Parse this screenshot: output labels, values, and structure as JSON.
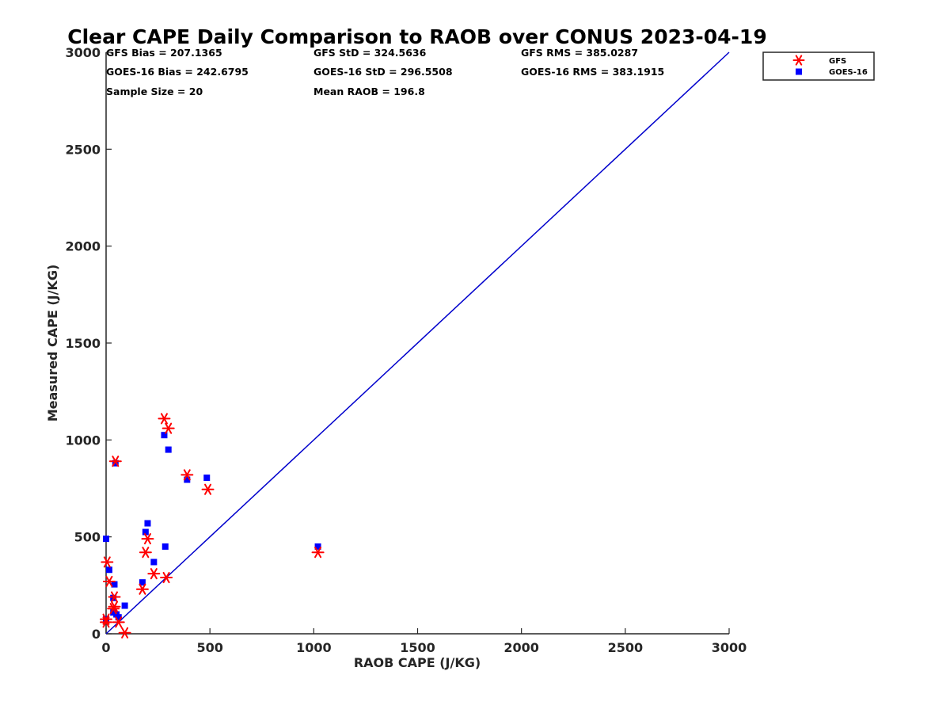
{
  "chart_data": {
    "type": "scatter",
    "title": "Clear CAPE Daily Comparison to RAOB over CONUS 2023-04-19",
    "xlabel": "RAOB CAPE (J/KG)",
    "ylabel": "Measured CAPE (J/KG)",
    "xlim": [
      0,
      3000
    ],
    "ylim": [
      0,
      3000
    ],
    "x_ticks": [
      0,
      500,
      1000,
      1500,
      2000,
      2500,
      3000
    ],
    "y_ticks": [
      0,
      500,
      1000,
      1500,
      2000,
      2500,
      3000
    ],
    "grid": false,
    "legend_position": "outside-top-right",
    "stats": [
      "GFS Bias = 207.1365",
      "GFS StD = 324.5636",
      "GFS RMS = 385.0287",
      "GOES-16 Bias = 242.6795",
      "GOES-16 StD = 296.5508",
      "GOES-16 RMS = 383.1915",
      "Sample Size = 20",
      "Mean RAOB = 196.8"
    ],
    "reference_line": {
      "x": [
        0,
        3000
      ],
      "y": [
        0,
        3000
      ],
      "color": "#0000cc"
    },
    "series": [
      {
        "name": "GFS",
        "marker": "asterisk",
        "color": "#ff0000",
        "x": [
          0,
          5,
          15,
          40,
          40,
          45,
          60,
          90,
          175,
          190,
          200,
          230,
          280,
          290,
          300,
          390,
          490,
          1020,
          0,
          35
        ],
        "y": [
          60,
          370,
          270,
          190,
          140,
          890,
          60,
          5,
          230,
          420,
          490,
          310,
          1110,
          290,
          1060,
          820,
          745,
          420,
          75,
          130
        ]
      },
      {
        "name": "GOES-16",
        "marker": "square",
        "color": "#0000ff",
        "x": [
          0,
          0,
          15,
          35,
          40,
          45,
          50,
          60,
          90,
          175,
          190,
          200,
          230,
          280,
          285,
          300,
          390,
          485,
          1020,
          35
        ],
        "y": [
          75,
          490,
          330,
          185,
          255,
          880,
          100,
          85,
          145,
          265,
          525,
          570,
          370,
          1025,
          450,
          950,
          795,
          805,
          450,
          110
        ]
      }
    ]
  }
}
